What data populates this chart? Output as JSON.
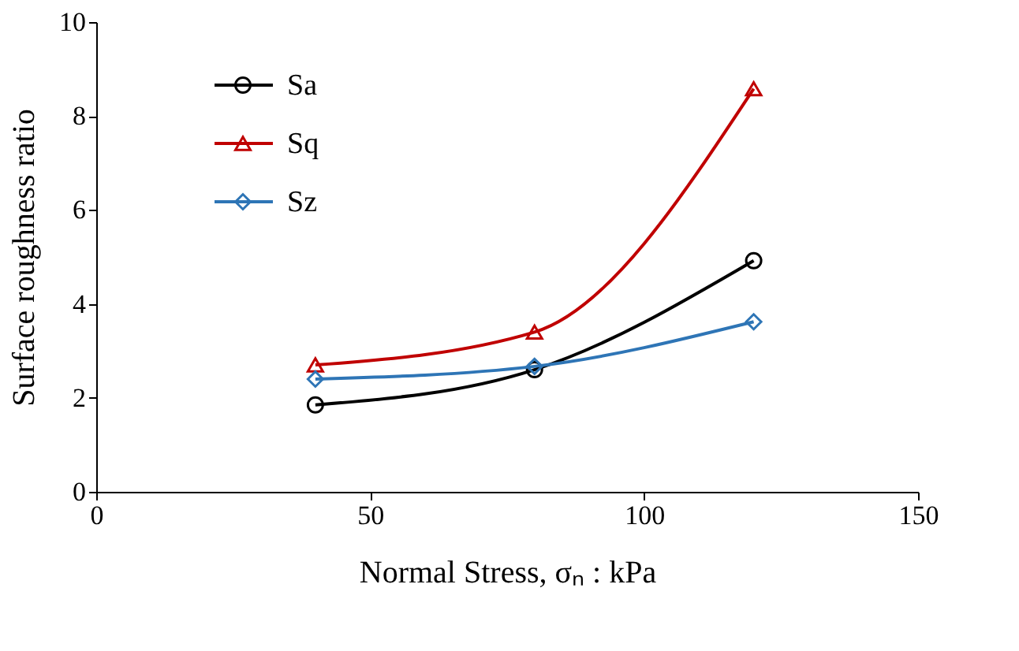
{
  "chart_data": {
    "type": "line",
    "xlabel": "Normal Stress, σₙ : kPa",
    "ylabel": "Surface roughness ratio",
    "x": [
      40,
      80,
      120
    ],
    "series": [
      {
        "name": "Sa",
        "color": "#000000",
        "marker": "circle",
        "values": [
          1.85,
          2.6,
          4.92
        ]
      },
      {
        "name": "Sq",
        "color": "#c00000",
        "marker": "triangle",
        "values": [
          2.7,
          3.4,
          8.58
        ]
      },
      {
        "name": "Sz",
        "color": "#2e75b6",
        "marker": "diamond",
        "values": [
          2.4,
          2.67,
          3.62
        ]
      }
    ],
    "xlim": [
      0,
      150
    ],
    "xticks": [
      0,
      50,
      100,
      150
    ],
    "ylim": [
      0,
      10
    ],
    "yticks": [
      0,
      2,
      4,
      6,
      8,
      10
    ],
    "grid": false,
    "legend": "top left",
    "line_style": "solid"
  }
}
